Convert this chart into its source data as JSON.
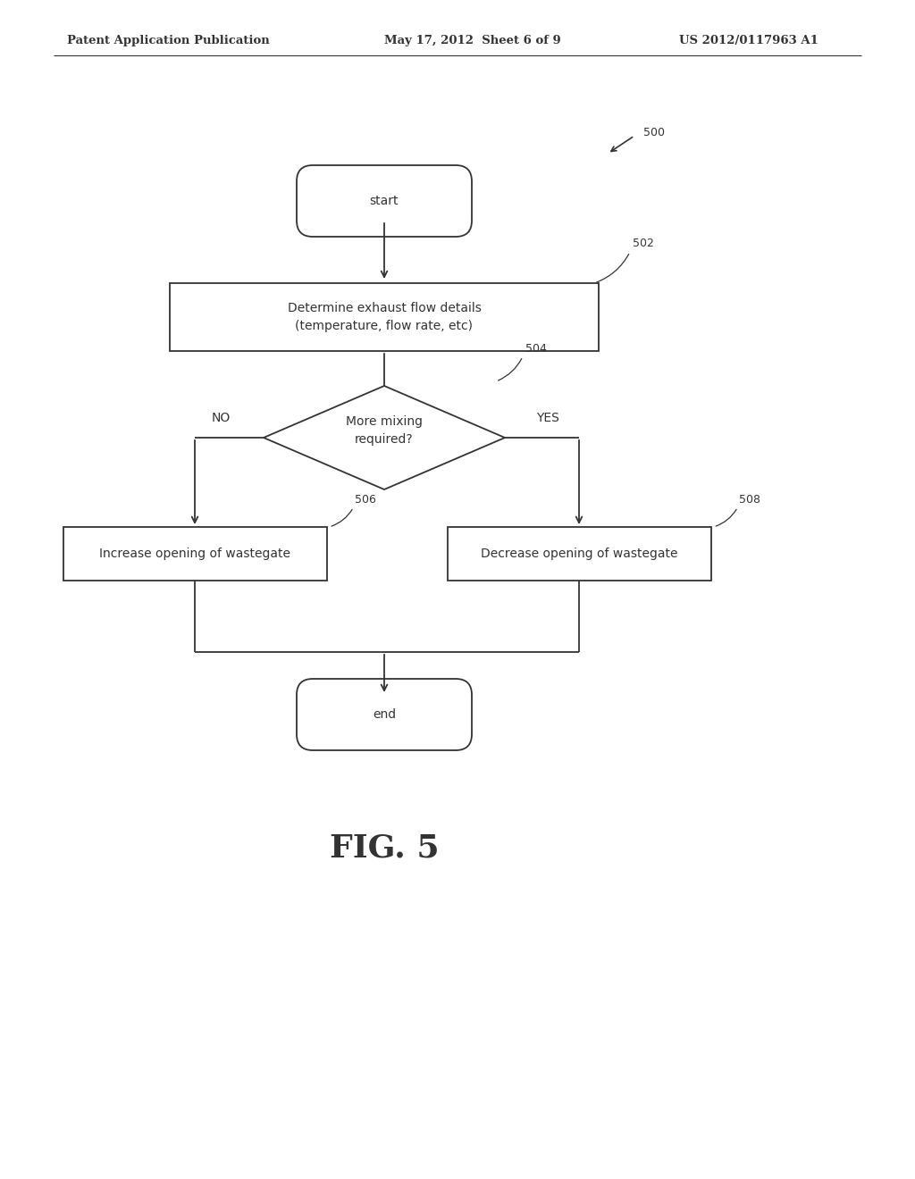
{
  "bg_color": "#ffffff",
  "line_color": "#333333",
  "text_color": "#333333",
  "header_left": "Patent Application Publication",
  "header_center": "May 17, 2012  Sheet 6 of 9",
  "header_right": "US 2012/0117963 A1",
  "fig_label": "FIG. 5",
  "ref_500": "500",
  "ref_502": "502",
  "ref_504": "504",
  "ref_506": "506",
  "ref_508": "508",
  "start_text": "start",
  "box502_text": "Determine exhaust flow details\n(temperature, flow rate, etc)",
  "diamond504_text": "More mixing\nrequired?",
  "no_label": "NO",
  "yes_label": "YES",
  "box506_text": "Increase opening of wastegate",
  "box508_text": "Decrease opening of wastegate",
  "end_text": "end",
  "header_fontsize": 9.5,
  "body_fontsize": 10,
  "small_fontsize": 9,
  "fig_label_fontsize": 26
}
